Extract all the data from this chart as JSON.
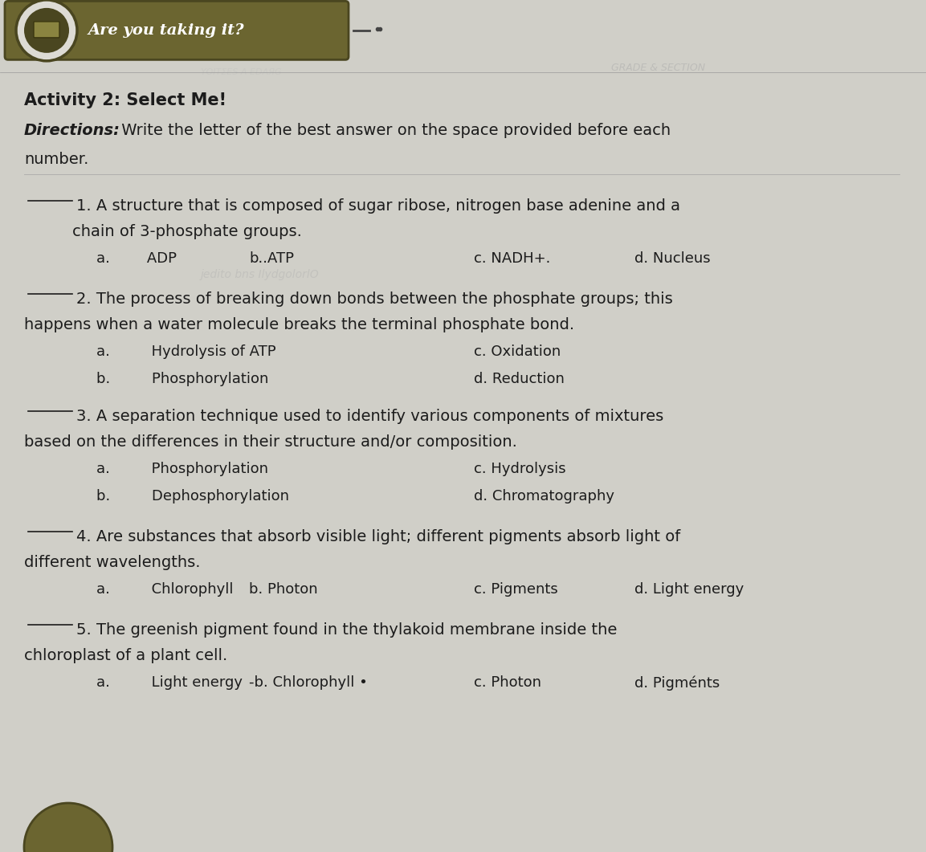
{
  "bg_color": "#d0cfc8",
  "paper_color": "#dddbd4",
  "header_label": "Are you taking it?",
  "title": "Activity 2: Select Me!",
  "directions_bold": "Directions:",
  "directions_rest": " Write the letter of the best answer on the space provided before each",
  "directions_cont": "number.",
  "questions": [
    {
      "number": "1",
      "line1": "_____1. A structure that is composed of sugar ribose, nitrogen base adenine and a",
      "line2": "      chain of 3-phosphate groups.",
      "choices4": [
        "a.        ADP",
        "b..ATP",
        "c. NADH+.",
        "d. Nucleus"
      ],
      "ghost": "jedito bns IlydgolorlO"
    },
    {
      "number": "2",
      "line1": "_____2. The process of breaking down bonds between the phosphate groups; this",
      "line2": "happens when a water molecule breaks the terminal phosphate bond.",
      "choices2a": [
        "a.         Hydrolysis of ATP",
        "c. Oxidation"
      ],
      "choices2b": [
        "b.         Phosphorylation",
        "d. Reduction"
      ]
    },
    {
      "number": "3",
      "line1": "_____3. A separation technique used to identify various components of mixtures",
      "line2": "based on the differences in their structure and/or composition.",
      "choices2a": [
        "a.         Phosphorylation",
        "c. Hydrolysis"
      ],
      "choices2b": [
        "b.         Dephosphorylation",
        "d. Chromatography"
      ]
    },
    {
      "number": "4",
      "line1": "_____4. Are substances that absorb visible light; different pigments absorb light of",
      "line2": "different wavelengths.",
      "choices4": [
        "a.         Chlorophyll",
        "b. Photon",
        "c. Pigments",
        "d. Light energy"
      ]
    },
    {
      "number": "5",
      "line1": "_____5. The greenish pigment found in the thylakoid membrane inside the",
      "line2": "chloroplast of a plant cell.",
      "choices4": [
        "a.         Light energy",
        "-b. Chlorophyll •",
        "c. Photon",
        "d. Pigménts"
      ]
    }
  ],
  "text_color": "#1c1c1c",
  "title_fs": 15,
  "body_fs": 14,
  "choice_fs": 13,
  "ghost_fs": 10,
  "header_badge_color": "#6b6530",
  "header_badge_dark": "#4a4620",
  "header_text_color": "#ffffff",
  "header_fs": 14
}
